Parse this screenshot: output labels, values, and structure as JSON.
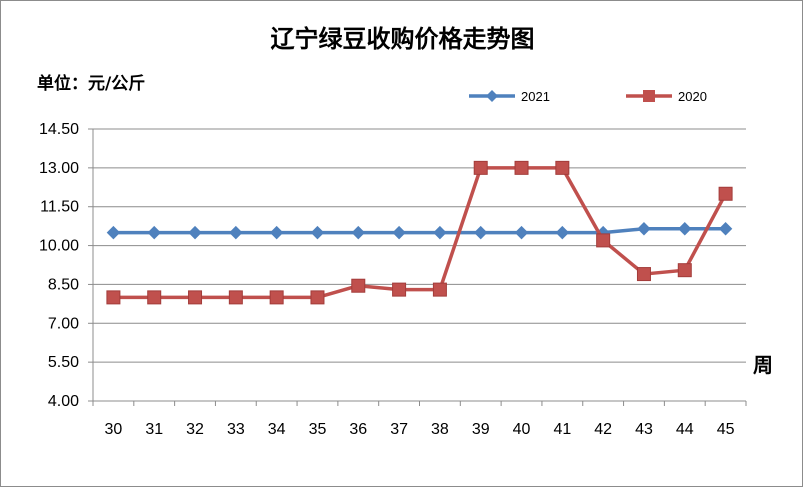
{
  "chart_data": {
    "type": "line",
    "title": "辽宁绿豆收购价格走势图",
    "ylabel": "单位：元/公斤",
    "xlabel": "周",
    "ylim": [
      4.0,
      14.5
    ],
    "yticks": [
      "14.50",
      "13.00",
      "11.50",
      "10.00",
      "8.50",
      "7.00",
      "5.50",
      "4.00"
    ],
    "ytick_values": [
      14.5,
      13.0,
      11.5,
      10.0,
      8.5,
      7.0,
      5.5,
      4.0
    ],
    "categories": [
      "30",
      "31",
      "32",
      "33",
      "34",
      "35",
      "36",
      "37",
      "38",
      "39",
      "40",
      "41",
      "42",
      "43",
      "44",
      "45"
    ],
    "grid": true,
    "legend_position": "top-right",
    "series": [
      {
        "name": "2021",
        "color": "#4f81bd",
        "marker": "diamond",
        "values": [
          10.5,
          10.5,
          10.5,
          10.5,
          10.5,
          10.5,
          10.5,
          10.5,
          10.5,
          10.5,
          10.5,
          10.5,
          10.5,
          10.65,
          10.65,
          10.65
        ]
      },
      {
        "name": "2020",
        "color": "#c0504d",
        "marker": "square",
        "values": [
          8.0,
          8.0,
          8.0,
          8.0,
          8.0,
          8.0,
          8.45,
          8.3,
          8.3,
          13.0,
          13.0,
          13.0,
          10.2,
          8.9,
          9.05,
          12.0
        ]
      }
    ]
  }
}
